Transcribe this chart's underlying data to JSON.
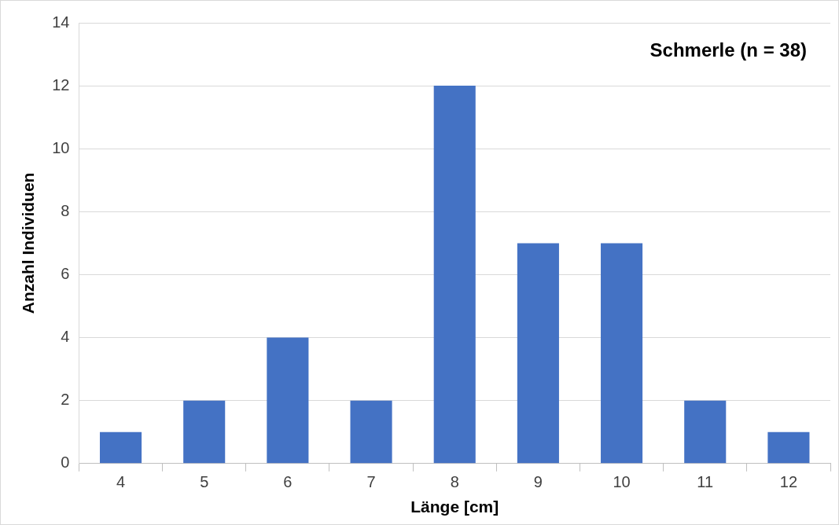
{
  "chart_data": {
    "type": "bar",
    "title": "Schmerle (n = 38)",
    "xlabel": "Länge [cm]",
    "ylabel": "Anzahl Individuen",
    "categories": [
      "4",
      "5",
      "6",
      "7",
      "8",
      "9",
      "10",
      "11",
      "12"
    ],
    "values": [
      1,
      2,
      4,
      2,
      12,
      7,
      7,
      2,
      1
    ],
    "color": "#4472c4",
    "ylim": [
      0,
      14
    ],
    "yticks": [
      0,
      2,
      4,
      6,
      8,
      10,
      12,
      14
    ],
    "grid": "y",
    "legend": false
  }
}
